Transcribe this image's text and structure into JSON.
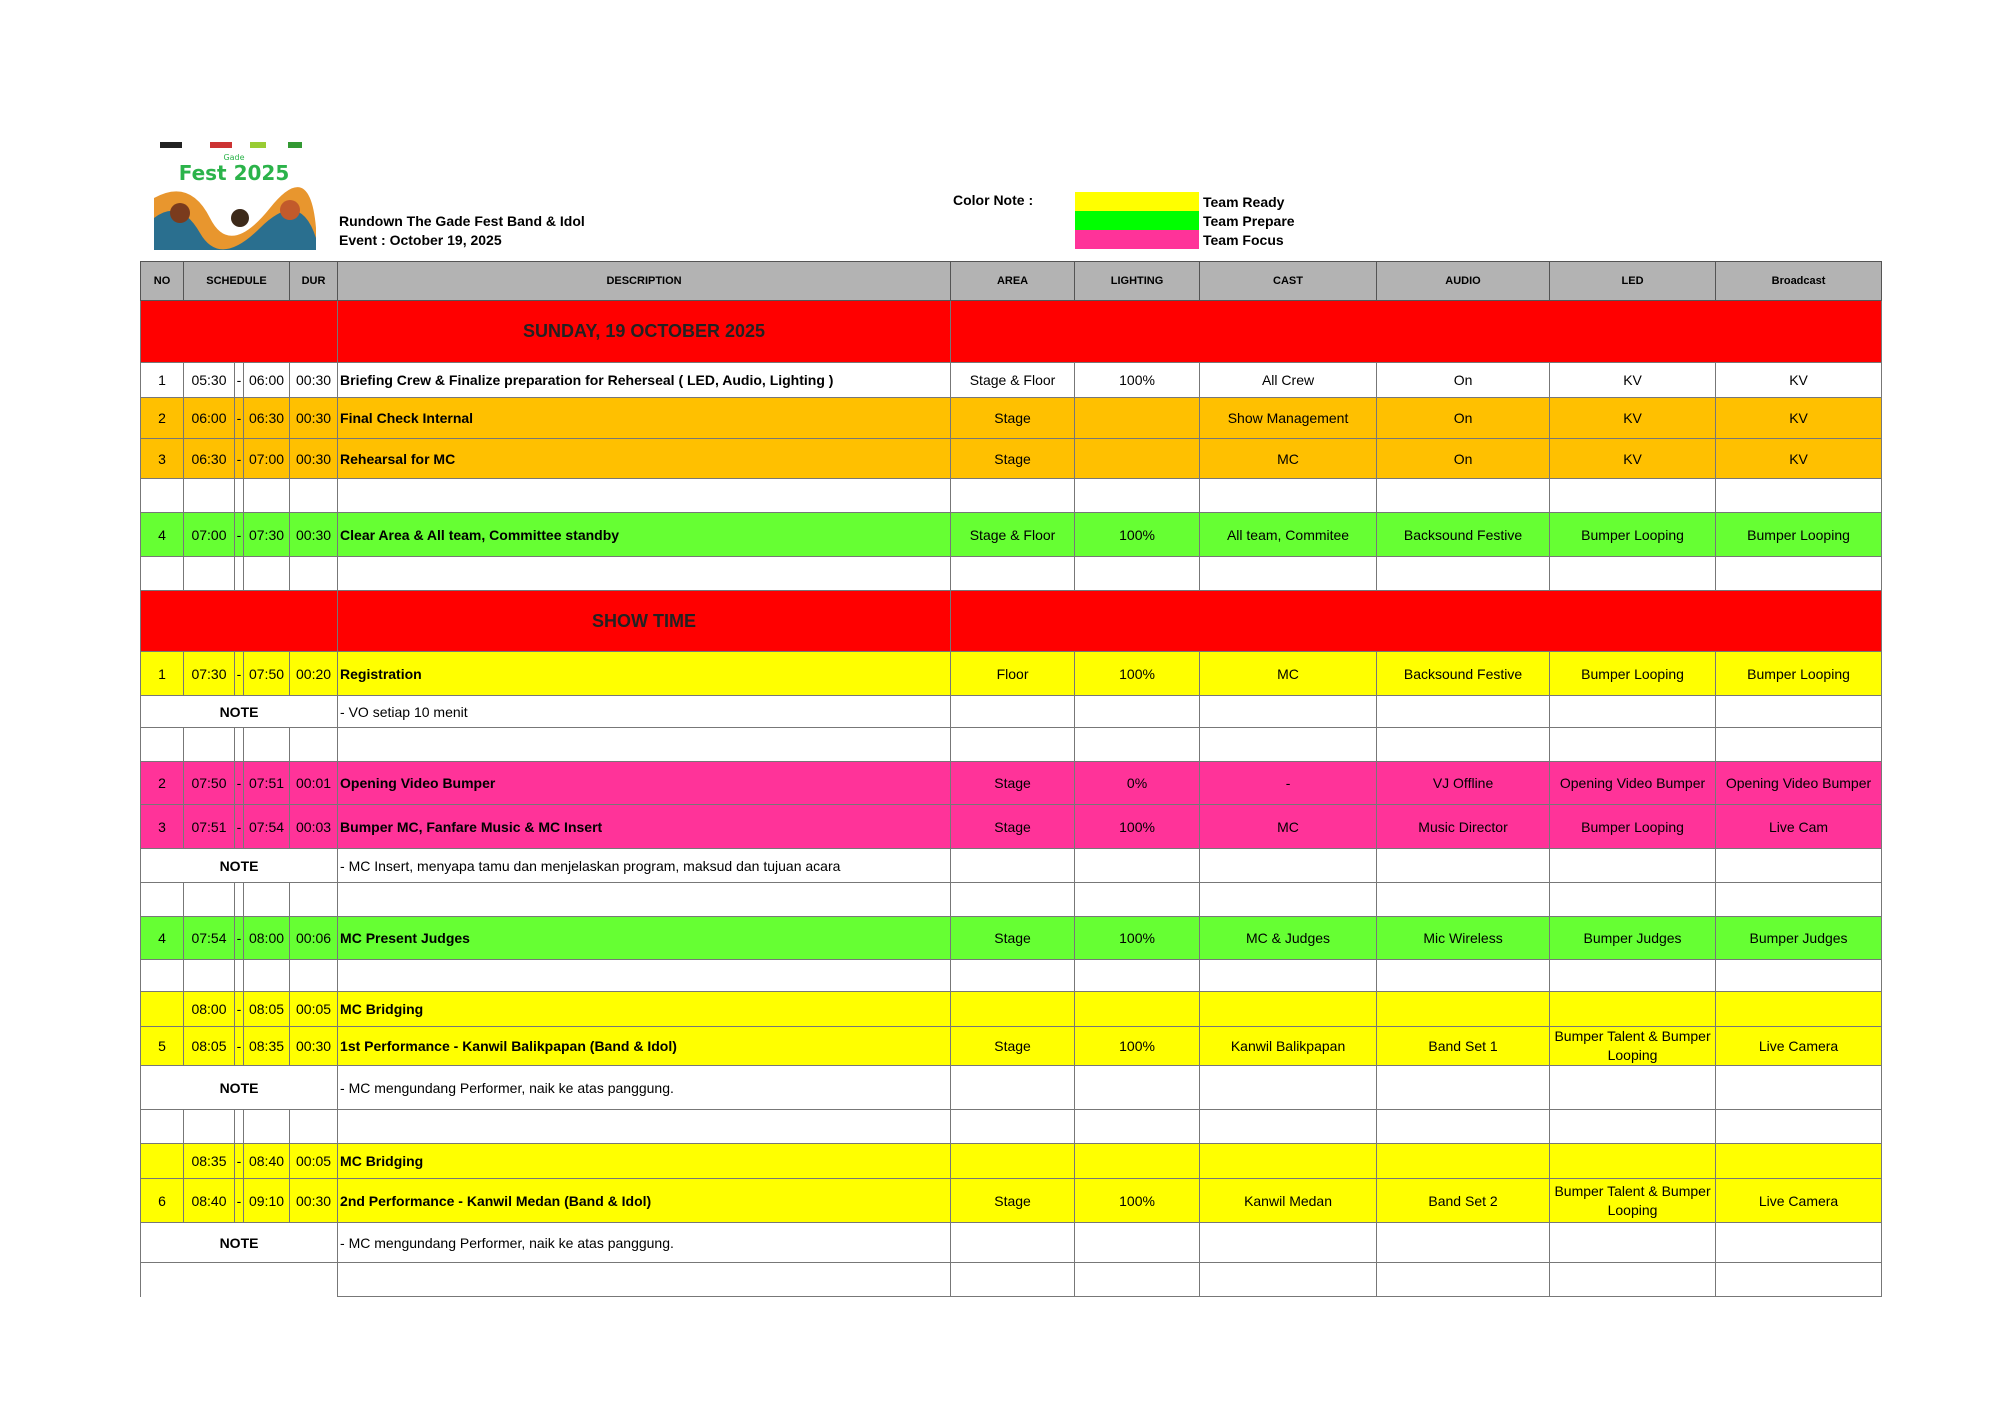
{
  "header": {
    "title": "Rundown The Gade Fest Band & Idol",
    "event": "Event : October 19, 2025",
    "logo_text": "Gade Fest 2025"
  },
  "legend": {
    "label": "Color Note :",
    "items": [
      {
        "label": "Team Ready",
        "color": "#ffff00"
      },
      {
        "label": "Team Prepare",
        "color": "#00ff00"
      },
      {
        "label": "Team Focus",
        "color": "#ff3399"
      }
    ]
  },
  "columns": [
    "NO",
    "SCHEDULE",
    "DUR",
    "DESCRIPTION",
    "AREA",
    "LIGHTING",
    "CAST",
    "AUDIO",
    "LED",
    "Broadcast"
  ],
  "colors": {
    "red": "#ff0000",
    "orange": "#ffc000",
    "green": "#66ff33",
    "yellow": "#ffff00",
    "pink": "#ff3399",
    "white": "#ffffff"
  },
  "rows": [
    {
      "type": "section",
      "label": "SUNDAY, 19 OCTOBER 2025"
    },
    {
      "type": "item",
      "color": "white",
      "no": "1",
      "start": "05:30",
      "end": "06:00",
      "dur": "00:30",
      "desc": "Briefing Crew & Finalize preparation for Reherseal ( LED, Audio, Lighting )",
      "area": "Stage & Floor",
      "lighting": "100%",
      "cast": "All Crew",
      "audio": "On",
      "led": "KV",
      "broadcast": "KV"
    },
    {
      "type": "item",
      "color": "orange",
      "no": "2",
      "start": "06:00",
      "end": "06:30",
      "dur": "00:30",
      "desc": "Final Check Internal",
      "area": "Stage",
      "lighting": "",
      "cast": "Show Management",
      "audio": "On",
      "led": "KV",
      "broadcast": "KV"
    },
    {
      "type": "item",
      "color": "orange",
      "no": "3",
      "start": "06:30",
      "end": "07:00",
      "dur": "00:30",
      "desc": "Rehearsal for MC",
      "area": "Stage",
      "lighting": "",
      "cast": "MC",
      "audio": "On",
      "led": "KV",
      "broadcast": "KV"
    },
    {
      "type": "blank"
    },
    {
      "type": "item",
      "color": "green",
      "no": "4",
      "start": "07:00",
      "end": "07:30",
      "dur": "00:30",
      "desc": "Clear Area & All team, Committee standby",
      "area": "Stage & Floor",
      "lighting": "100%",
      "cast": "All team, Commitee",
      "audio": "Backsound Festive",
      "led": "Bumper Looping",
      "broadcast": "Bumper Looping"
    },
    {
      "type": "blank"
    },
    {
      "type": "section",
      "label": "SHOW TIME"
    },
    {
      "type": "item",
      "color": "yellow",
      "no": "1",
      "start": "07:30",
      "end": "07:50",
      "dur": "00:20",
      "desc": "Registration",
      "area": "Floor",
      "lighting": "100%",
      "cast": "MC",
      "audio": "Backsound Festive",
      "led": "Bumper Looping",
      "broadcast": "Bumper Looping"
    },
    {
      "type": "note",
      "label": "NOTE",
      "text": "- VO setiap 10 menit"
    },
    {
      "type": "blank"
    },
    {
      "type": "item",
      "color": "pink",
      "no": "2",
      "start": "07:50",
      "end": "07:51",
      "dur": "00:01",
      "desc": "Opening Video Bumper",
      "area": "Stage",
      "lighting": "0%",
      "cast": "-",
      "audio": "VJ Offline",
      "led": "Opening Video Bumper",
      "broadcast": "Opening Video Bumper"
    },
    {
      "type": "item",
      "color": "pink",
      "no": "3",
      "start": "07:51",
      "end": "07:54",
      "dur": "00:03",
      "desc": "Bumper MC, Fanfare Music & MC Insert",
      "area": "Stage",
      "lighting": "100%",
      "cast": "MC",
      "audio": "Music Director",
      "led": "Bumper Looping",
      "broadcast": "Live Cam"
    },
    {
      "type": "note",
      "label": "NOTE",
      "text": "- MC Insert, menyapa tamu dan menjelaskan program, maksud dan tujuan acara"
    },
    {
      "type": "blank"
    },
    {
      "type": "item",
      "color": "green",
      "no": "4",
      "start": "07:54",
      "end": "08:00",
      "dur": "00:06",
      "desc": "MC Present Judges",
      "area": "Stage",
      "lighting": "100%",
      "cast": "MC & Judges",
      "audio": "Mic Wireless",
      "led": "Bumper Judges",
      "broadcast": "Bumper Judges"
    },
    {
      "type": "blank"
    },
    {
      "type": "item",
      "color": "yellow",
      "no": "",
      "start": "08:00",
      "end": "08:05",
      "dur": "00:05",
      "desc": "MC Bridging",
      "area": "",
      "lighting": "",
      "cast": "",
      "audio": "",
      "led": "",
      "broadcast": ""
    },
    {
      "type": "item",
      "color": "yellow",
      "no": "5",
      "start": "08:05",
      "end": "08:35",
      "dur": "00:30",
      "desc": "1st Performance - Kanwil Balikpapan (Band & Idol)",
      "area": "Stage",
      "lighting": "100%",
      "cast": "Kanwil Balikpapan",
      "audio": "Band Set 1",
      "led": "Bumper Talent & Bumper Looping",
      "broadcast": "Live Camera"
    },
    {
      "type": "note",
      "label": "NOTE",
      "text": "- MC mengundang Performer, naik ke atas panggung."
    },
    {
      "type": "blank"
    },
    {
      "type": "item",
      "color": "yellow",
      "no": "",
      "start": "08:35",
      "end": "08:40",
      "dur": "00:05",
      "desc": "MC Bridging",
      "area": "",
      "lighting": "",
      "cast": "",
      "audio": "",
      "led": "",
      "broadcast": ""
    },
    {
      "type": "item",
      "color": "yellow",
      "no": "6",
      "start": "08:40",
      "end": "09:10",
      "dur": "00:30",
      "desc": "2nd Performance - Kanwil Medan (Band & Idol)",
      "area": "Stage",
      "lighting": "100%",
      "cast": "Kanwil Medan",
      "audio": "Band Set 2",
      "led": "Bumper Talent & Bumper Looping",
      "broadcast": "Live Camera"
    },
    {
      "type": "note",
      "label": "NOTE",
      "text": "- MC mengundang Performer, naik ke atas panggung."
    },
    {
      "type": "tail"
    }
  ]
}
